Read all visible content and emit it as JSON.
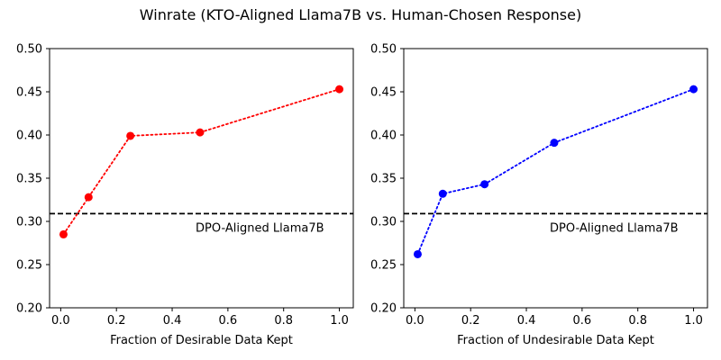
{
  "figure": {
    "suptitle": "Winrate (KTO-Aligned Llama7B vs. Human-Chosen Response)"
  },
  "chart_data": [
    {
      "type": "line",
      "xlabel": "Fraction of Desirable Data Kept",
      "ylabel": "",
      "xlim": [
        -0.04,
        1.05
      ],
      "ylim": [
        0.2,
        0.5
      ],
      "xticks": [
        0.0,
        0.2,
        0.4,
        0.6,
        0.8,
        1.0
      ],
      "xtick_labels": [
        "0.0",
        "0.2",
        "0.4",
        "0.6",
        "0.8",
        "1.0"
      ],
      "yticks": [
        0.2,
        0.25,
        0.3,
        0.35,
        0.4,
        0.45,
        0.5
      ],
      "ytick_labels": [
        "0.20",
        "0.25",
        "0.30",
        "0.35",
        "0.40",
        "0.45",
        "0.50"
      ],
      "grid": false,
      "series": [
        {
          "color": "#ff0000",
          "line_style": "dotted",
          "marker": "circle",
          "x": [
            0.01,
            0.1,
            0.25,
            0.5,
            1.0
          ],
          "y": [
            0.285,
            0.328,
            0.399,
            0.403,
            0.453
          ]
        }
      ],
      "reference_line": {
        "y": 0.309,
        "style": "dashed",
        "color": "#000000",
        "label": "DPO-Aligned Llama7B"
      }
    },
    {
      "type": "line",
      "xlabel": "Fraction of Undesirable Data Kept",
      "ylabel": "",
      "xlim": [
        -0.04,
        1.05
      ],
      "ylim": [
        0.2,
        0.5
      ],
      "xticks": [
        0.0,
        0.2,
        0.4,
        0.6,
        0.8,
        1.0
      ],
      "xtick_labels": [
        "0.0",
        "0.2",
        "0.4",
        "0.6",
        "0.8",
        "1.0"
      ],
      "yticks": [
        0.2,
        0.25,
        0.3,
        0.35,
        0.4,
        0.45,
        0.5
      ],
      "ytick_labels": [
        "0.20",
        "0.25",
        "0.30",
        "0.35",
        "0.40",
        "0.45",
        "0.50"
      ],
      "grid": false,
      "series": [
        {
          "color": "#0000ff",
          "line_style": "dotted",
          "marker": "circle",
          "x": [
            0.01,
            0.1,
            0.25,
            0.5,
            1.0
          ],
          "y": [
            0.262,
            0.332,
            0.343,
            0.391,
            0.453
          ]
        }
      ],
      "reference_line": {
        "y": 0.309,
        "style": "dashed",
        "color": "#000000",
        "label": "DPO-Aligned Llama7B"
      }
    }
  ]
}
